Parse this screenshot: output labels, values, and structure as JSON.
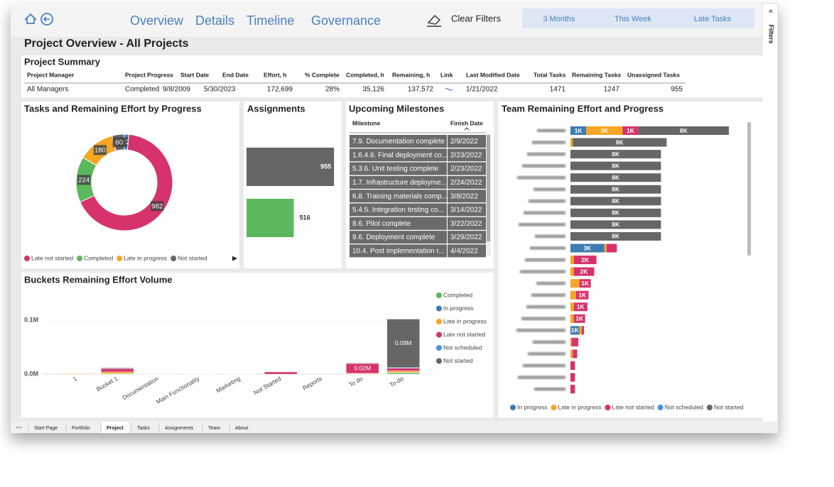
{
  "nav": {
    "links": [
      "Overview",
      "Details",
      "Timeline",
      "Governance"
    ],
    "clear_filters": "Clear Filters",
    "filters": [
      "3 Months",
      "This Week",
      "Late Tasks"
    ],
    "filters_pane": "Filters"
  },
  "title": "Project Overview - All Projects",
  "summary": {
    "title": "Project Summary",
    "columns": [
      "Project Manager",
      "Project Progress",
      "Start Date",
      "End Date",
      "Effort, h",
      "% Complete",
      "Completed, h",
      "Remaining, h",
      "Link",
      "Last Modified Date",
      "Total Tasks",
      "Remaining Tasks",
      "Unassigned Tasks"
    ],
    "rows": [
      [
        "All Managers",
        "Completed",
        "9/8/2009",
        "5/30/2023",
        "172,699",
        "28%",
        "35,126",
        "137,572",
        null,
        "1/21/2022",
        "1471",
        "1247",
        "955"
      ]
    ]
  },
  "milestones": {
    "title": "Upcoming Milestones",
    "columns": [
      "Milestone",
      "Finish Date"
    ],
    "rows": [
      [
        "7.9. Documentation complete",
        "2/9/2022"
      ],
      [
        "1.6.4.6. Final deployment co...",
        "2/23/2022"
      ],
      [
        "5.3.6. Unit testing complete",
        "2/23/2022"
      ],
      [
        "1.7. Infrastructure deployme...",
        "2/24/2022"
      ],
      [
        "6.8. Training materials comp...",
        "3/8/2022"
      ],
      [
        "5.4.5. Integration testing co...",
        "3/14/2022"
      ],
      [
        "8.6. Pilot complete",
        "3/22/2022"
      ],
      [
        "9.6. Deployment complete",
        "3/29/2022"
      ],
      [
        "10.4. Post implementation r...",
        "4/4/2022"
      ]
    ]
  },
  "tabs": [
    "Start Page",
    "Portfolio",
    "Project",
    "Tasks",
    "Assignments",
    "Team",
    "About"
  ],
  "active_tab": 2,
  "chart_data": [
    {
      "type": "pie",
      "title": "Tasks and Remaining Effort by Progress",
      "categories": [
        null,
        "Late not started",
        "Completed",
        "Late in progress",
        "Not started"
      ],
      "values": [
        22,
        982,
        224,
        180,
        60
      ],
      "colors": [
        "#3c7fd6",
        "#d6336c",
        "#5cb85c",
        "#f5a623",
        "#666666"
      ],
      "donut": true
    },
    {
      "type": "bar",
      "title": "Assignments",
      "orientation": "horizontal",
      "values": [
        955,
        516
      ],
      "colors": [
        "#666666",
        "#5cb85c"
      ],
      "xlim": [
        0,
        1000
      ]
    },
    {
      "type": "bar",
      "title": "Team Remaining Effort and Progress",
      "orientation": "horizontal",
      "stacked": true,
      "categories": [
        null,
        null,
        null,
        null,
        null,
        null,
        null,
        null,
        null,
        null,
        null,
        null,
        null,
        null,
        null,
        null,
        null,
        null,
        null,
        null,
        null,
        null,
        null
      ],
      "xlim": [
        0,
        14000
      ],
      "series": [
        {
          "name": "In progress",
          "color": "#3e7cb1",
          "values": [
            1400,
            0,
            0,
            0,
            0,
            0,
            0,
            0,
            0,
            0,
            3000,
            0,
            0,
            0,
            0,
            0,
            0,
            800,
            0,
            0,
            0,
            0,
            0
          ],
          "value_labels": [
            "1K",
            null,
            null,
            null,
            null,
            null,
            null,
            null,
            null,
            null,
            "3K",
            null,
            null,
            null,
            null,
            null,
            null,
            "1K",
            null,
            null,
            null,
            null,
            null
          ]
        },
        {
          "name": "Late in progress",
          "color": "#f5a623",
          "values": [
            3200,
            200,
            0,
            0,
            0,
            0,
            0,
            0,
            0,
            0,
            200,
            300,
            300,
            800,
            500,
            300,
            300,
            200,
            100,
            200,
            0,
            0,
            0
          ],
          "value_labels": [
            "3K",
            null,
            null,
            null,
            null,
            null,
            null,
            null,
            null,
            null,
            null,
            null,
            null,
            null,
            null,
            null,
            null,
            null,
            null,
            null,
            null,
            null,
            null
          ]
        },
        {
          "name": "Late not started",
          "color": "#d6336c",
          "values": [
            1400,
            0,
            0,
            0,
            0,
            0,
            0,
            0,
            0,
            0,
            900,
            2000,
            1800,
            1000,
            1100,
            1200,
            1000,
            200,
            600,
            400,
            400,
            400,
            400
          ],
          "value_labels": [
            "1K",
            null,
            null,
            null,
            null,
            null,
            null,
            null,
            null,
            null,
            null,
            "2K",
            "2K",
            "1K",
            "1K",
            "1K",
            "1K",
            null,
            null,
            null,
            null,
            null,
            null
          ]
        },
        {
          "name": "Not scheduled",
          "color": "#4a90e2",
          "values": [
            0,
            0,
            0,
            0,
            0,
            0,
            0,
            0,
            0,
            0,
            0,
            0,
            0,
            0,
            0,
            0,
            0,
            0,
            0,
            0,
            0,
            0,
            0
          ]
        },
        {
          "name": "Not started",
          "color": "#666666",
          "values": [
            8000,
            8300,
            8000,
            8000,
            8000,
            8000,
            8000,
            8000,
            8000,
            8000,
            0,
            0,
            0,
            0,
            0,
            0,
            0,
            0,
            0,
            0,
            0,
            0,
            0
          ],
          "value_labels": [
            "8K",
            "8K",
            "8K",
            "8K",
            "8K",
            "8K",
            "8K",
            "8K",
            "8K",
            "8K",
            null,
            null,
            null,
            null,
            null,
            null,
            null,
            null,
            null,
            null,
            null,
            null,
            null
          ]
        }
      ]
    },
    {
      "type": "bar",
      "title": "Buckets Remaining Effort Volume",
      "stacked": true,
      "categories": [
        "1",
        "Bucket 1",
        "Documentation",
        "Main Functionality",
        "Marketing",
        "Not Started",
        "Reports",
        "To do",
        "To-do"
      ],
      "ylim": [
        0,
        150000
      ],
      "yticks": [
        {
          "value": 0,
          "label": "0.0M"
        },
        {
          "value": 100000,
          "label": "0.1M"
        }
      ],
      "grid": true,
      "legend": "right",
      "series": [
        {
          "name": "Completed",
          "color": "#5cb85c",
          "values": [
            0,
            1000,
            0,
            0,
            0,
            0,
            0,
            0,
            2000
          ]
        },
        {
          "name": "In progress",
          "color": "#3e7cb1",
          "values": [
            0,
            0,
            0,
            0,
            0,
            0,
            0,
            500,
            1000
          ]
        },
        {
          "name": "Late in progress",
          "color": "#f5a623",
          "values": [
            1000,
            3000,
            500,
            500,
            0,
            0,
            0,
            1000,
            3000
          ]
        },
        {
          "name": "Late not started",
          "color": "#d6336c",
          "values": [
            0,
            6000,
            500,
            0,
            500,
            4000,
            0,
            18000,
            5000
          ],
          "value_labels": [
            null,
            null,
            null,
            null,
            null,
            null,
            null,
            "0.02M",
            null
          ]
        },
        {
          "name": "Not scheduled",
          "color": "#4a90e2",
          "values": [
            0,
            0,
            0,
            0,
            0,
            0,
            0,
            0,
            1000
          ]
        },
        {
          "name": "Not started",
          "color": "#666666",
          "values": [
            0,
            1500,
            0,
            0,
            0,
            0,
            0,
            1000,
            90000
          ],
          "value_labels": [
            null,
            null,
            null,
            null,
            null,
            null,
            null,
            null,
            "0.09M"
          ]
        }
      ]
    }
  ]
}
